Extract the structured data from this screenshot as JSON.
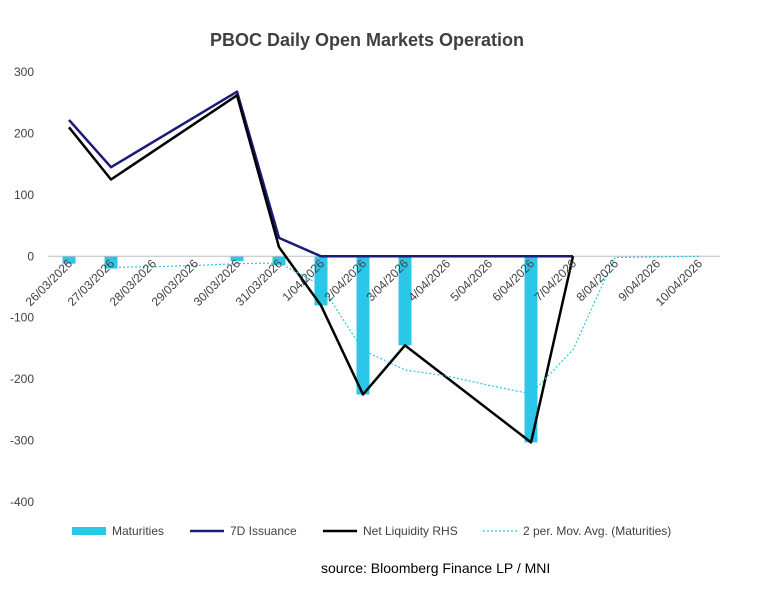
{
  "chart_data": {
    "type": "bar",
    "title": "PBOC Daily Open Markets Operation",
    "categories": [
      "26/03/2026",
      "27/03/2026",
      "28/03/2026",
      "29/03/2026",
      "30/03/2026",
      "31/03/2026",
      "1/04/2026",
      "2/04/2026",
      "3/04/2026",
      "4/04/2026",
      "5/04/2026",
      "6/04/2026",
      "7/04/2026",
      "8/04/2026",
      "9/04/2026",
      "10/04/2026"
    ],
    "ylim": [
      -400,
      300
    ],
    "yticks": [
      -400,
      -300,
      -200,
      -100,
      0,
      100,
      200,
      300
    ],
    "grid": false,
    "legend_position": "bottom",
    "series": [
      {
        "name": "Maturities",
        "type": "bar",
        "color": "#2ac7e8",
        "values": [
          -12,
          -20,
          null,
          null,
          -8,
          -14,
          -80,
          -225,
          -145,
          null,
          null,
          -303,
          null,
          null,
          null,
          null
        ]
      },
      {
        "name": "7D Issuance",
        "type": "line",
        "color": "#1a1a7a",
        "values": [
          222,
          145,
          null,
          null,
          268,
          30,
          0,
          0,
          0,
          0,
          0,
          0,
          0,
          null,
          null,
          null
        ]
      },
      {
        "name": "Net Liquidity RHS",
        "type": "line",
        "color": "#000000",
        "values": [
          210,
          125,
          null,
          null,
          262,
          15,
          -80,
          -225,
          -145,
          null,
          null,
          -303,
          0,
          null,
          null,
          null
        ]
      },
      {
        "name": "2 per. Mov. Avg. (Maturities)",
        "type": "line",
        "style": "dotted",
        "color": "#2ac7e8",
        "values": [
          null,
          -18,
          -17,
          -15,
          -12,
          -11,
          -47,
          -153,
          -185,
          -195,
          -210,
          -224,
          -152,
          -2,
          -1,
          0
        ]
      }
    ]
  },
  "source_note": "source:  Bloomberg Finance LP / MNI"
}
